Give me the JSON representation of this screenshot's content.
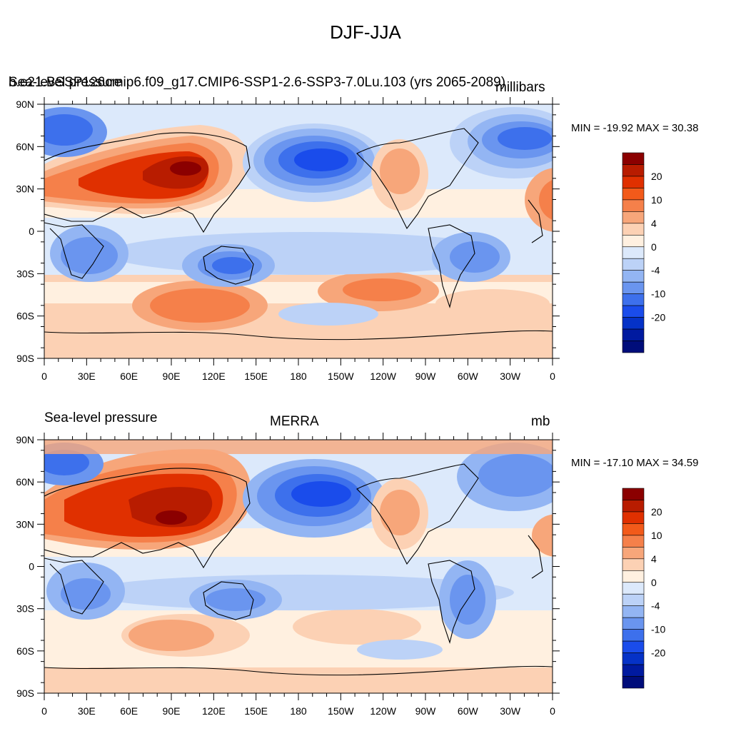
{
  "figure_title": "DJF-JJA",
  "colorbar": {
    "colors": [
      "#8b0000",
      "#b81c00",
      "#e03000",
      "#f25a1a",
      "#f5804a",
      "#f7a67a",
      "#fcd1b4",
      "#fff0e0",
      "#dce9fb",
      "#bcd2f7",
      "#93b5f3",
      "#6a95ef",
      "#3d70ec",
      "#1a4ceb",
      "#0532c7",
      "#001aa0",
      "#000d7a"
    ],
    "labels": [
      "20",
      "10",
      "4",
      "0",
      "-4",
      "-10",
      "-20"
    ]
  },
  "map_axes": {
    "lat_ticks": [
      "90N",
      "60N",
      "30N",
      "0",
      "30S",
      "60S",
      "90S"
    ],
    "lon_ticks": [
      "0",
      "30E",
      "60E",
      "90E",
      "120E",
      "150E",
      "180",
      "150W",
      "120W",
      "90W",
      "60W",
      "30W",
      "0"
    ]
  },
  "panels": [
    {
      "id": "model",
      "left_label": "Sea-level pressure",
      "center_label": "b.e21.BSSP126cmip6.f09_g17.CMIP6-SSP1-2.6-SSP3-7.0Lu.103 (yrs 2065-2089)",
      "right_label": "millibars",
      "stats": "MIN = -19.92 MAX =  30.38"
    },
    {
      "id": "obs",
      "left_label": "Sea-level pressure",
      "center_label": "MERRA",
      "right_label": "mb",
      "stats": "MIN = -17.10 MAX =  34.59"
    }
  ]
}
